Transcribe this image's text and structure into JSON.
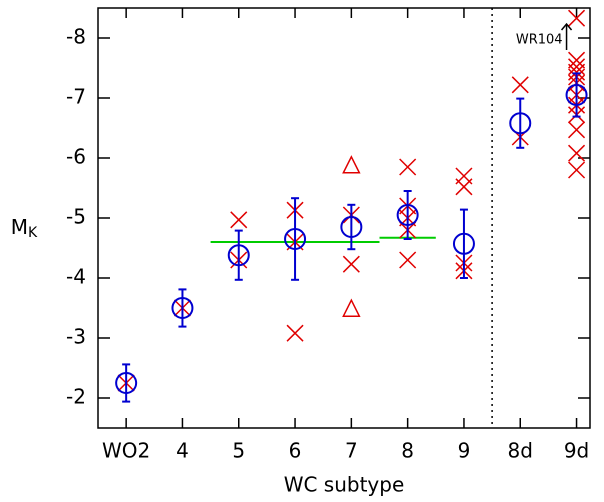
{
  "chart_data": {
    "type": "scatter",
    "xlabel": "WC subtype",
    "ylabel": "M",
    "ylabel_subscript": "K",
    "categories": [
      "WO2",
      "4",
      "5",
      "6",
      "7",
      "8",
      "9",
      "8d",
      "9d"
    ],
    "ylim": [
      -1.5,
      -8.5
    ],
    "yticks": [
      -2,
      -3,
      -4,
      -5,
      -6,
      -7,
      -8
    ],
    "series": [
      {
        "marker": "cross",
        "color": "#e00000",
        "x": [
          "WO2",
          "4",
          "5",
          "5",
          "6",
          "6",
          "6",
          "7",
          "7",
          "8",
          "8",
          "8",
          "8",
          "8",
          "9",
          "9",
          "9",
          "9",
          "8d",
          "8d",
          "9d",
          "9d",
          "9d",
          "9d",
          "9d",
          "9d",
          "9d",
          "9d",
          "9d",
          "9d",
          "9d",
          "9d"
        ],
        "values": [
          -2.25,
          -3.5,
          -4.97,
          -4.3,
          -5.13,
          -4.6,
          -3.08,
          -5.05,
          -4.23,
          -5.85,
          -5.2,
          -5.0,
          -4.8,
          -4.3,
          -5.7,
          -5.52,
          -4.25,
          -4.12,
          -7.22,
          -6.35,
          -8.33,
          -7.63,
          -7.52,
          -7.43,
          -7.35,
          -7.25,
          -7.05,
          -6.88,
          -6.72,
          -6.47,
          -6.08,
          -5.8
        ]
      },
      {
        "marker": "triangle",
        "color": "#e00000",
        "x": [
          "7",
          "7"
        ],
        "values": [
          -5.87,
          -3.48
        ]
      },
      {
        "marker": "circle",
        "color": "#0000d0",
        "x": [
          "WO2",
          "4",
          "5",
          "6",
          "7",
          "8",
          "9",
          "8d",
          "9d"
        ],
        "values": [
          -2.25,
          -3.5,
          -4.38,
          -4.65,
          -4.85,
          -5.05,
          -4.57,
          -6.58,
          -7.05
        ],
        "errors": [
          0.31,
          0.31,
          0.41,
          0.68,
          0.37,
          0.4,
          0.57,
          0.41,
          0.36
        ]
      }
    ],
    "hlines": [
      {
        "from": "5",
        "to": "7",
        "value": -4.6,
        "color": "#00cc00"
      },
      {
        "from": "8",
        "to": "8",
        "value": -4.67,
        "color": "#00cc00"
      }
    ],
    "vline_after": "9",
    "annotation": {
      "text": "WR104",
      "x": "9d"
    }
  }
}
